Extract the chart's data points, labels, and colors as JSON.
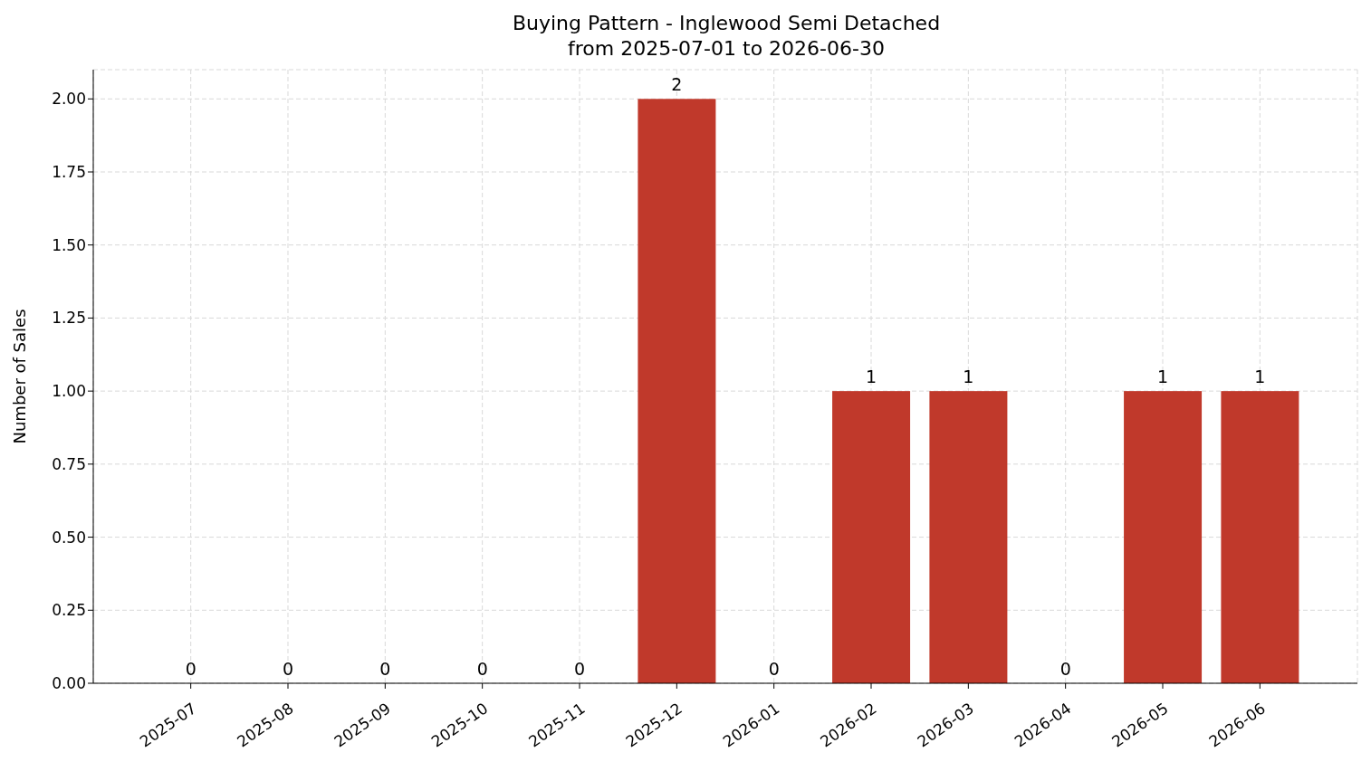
{
  "chart_data": {
    "type": "bar",
    "title": "Buying Pattern - Inglewood Semi Detached",
    "subtitle": "from 2025-07-01 to 2026-06-30",
    "ylabel": "Number of Sales",
    "categories": [
      "2025-07",
      "2025-08",
      "2025-09",
      "2025-10",
      "2025-11",
      "2025-12",
      "2026-01",
      "2026-02",
      "2026-03",
      "2026-04",
      "2026-05",
      "2026-06"
    ],
    "values": [
      0,
      0,
      0,
      0,
      0,
      2,
      0,
      1,
      1,
      0,
      1,
      1
    ],
    "color": "#c0392b",
    "ylim": [
      0,
      2.1
    ],
    "yticks": [
      {
        "value": 0,
        "label": "0.00"
      },
      {
        "value": 0.25,
        "label": "0.25"
      },
      {
        "value": 0.5,
        "label": "0.50"
      },
      {
        "value": 0.75,
        "label": "0.75"
      },
      {
        "value": 1,
        "label": "1.00"
      },
      {
        "value": 1.25,
        "label": "1.25"
      },
      {
        "value": 1.5,
        "label": "1.50"
      },
      {
        "value": 1.75,
        "label": "1.75"
      },
      {
        "value": 2,
        "label": "2.00"
      }
    ],
    "grid": true,
    "data_labels": true
  }
}
